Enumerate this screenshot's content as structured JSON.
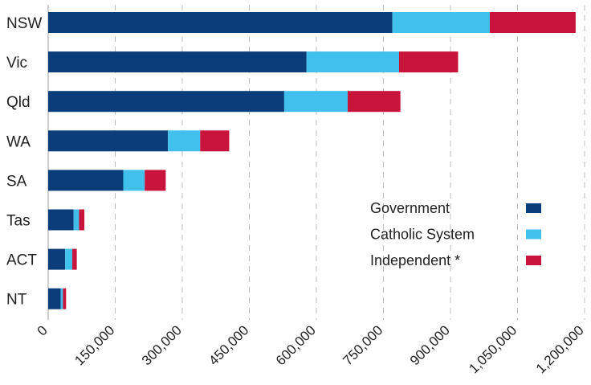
{
  "chart_data": {
    "type": "bar",
    "orientation": "horizontal",
    "stacked": true,
    "title": "",
    "xlabel": "",
    "ylabel": "",
    "categories": [
      "NSW",
      "Vic",
      "Qld",
      "WA",
      "SA",
      "Tas",
      "ACT",
      "NT"
    ],
    "series": [
      {
        "name": "Government",
        "color": "#0b3d7a",
        "values": [
          770000,
          578000,
          528000,
          268000,
          168000,
          57000,
          38000,
          28000
        ]
      },
      {
        "name": "Catholic System",
        "color": "#41c0ec",
        "values": [
          218000,
          207000,
          142000,
          72000,
          48000,
          12000,
          16000,
          5000
        ]
      },
      {
        "name": "Independent *",
        "color": "#c8133d",
        "values": [
          192000,
          132000,
          118000,
          65000,
          47000,
          12000,
          10000,
          7000
        ]
      }
    ],
    "xticks": [
      "0",
      "150,000",
      "300,000",
      "450,000",
      "600,000",
      "750,000",
      "900,000",
      "1,050,000",
      "1,200,000"
    ],
    "xtick_values": [
      0,
      150000,
      300000,
      450000,
      600000,
      750000,
      900000,
      1050000,
      1200000
    ],
    "xlim": [
      0,
      1200000
    ],
    "grid": "vertical dashed",
    "legend_position": "center-right"
  }
}
